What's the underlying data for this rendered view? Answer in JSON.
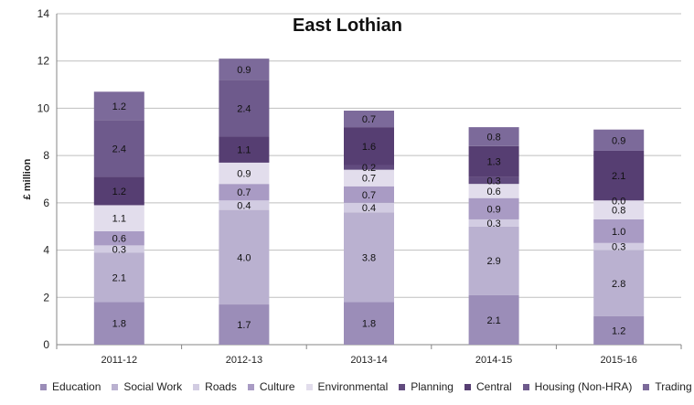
{
  "chart_data": {
    "type": "bar",
    "stacked": true,
    "title": "East Lothian",
    "xlabel": "",
    "ylabel": "£ million",
    "ylim": [
      0,
      14
    ],
    "yticks": [
      0,
      2,
      4,
      6,
      8,
      10,
      12,
      14
    ],
    "grid": true,
    "legend_position": "bottom",
    "categories": [
      "2011-12",
      "2012-13",
      "2013-14",
      "2014-15",
      "2015-16"
    ],
    "series": [
      {
        "name": "Education",
        "color": "#9B8DB8",
        "values": [
          1.8,
          1.7,
          1.8,
          2.1,
          1.2
        ]
      },
      {
        "name": "Social Work",
        "color": "#BAB1D0",
        "values": [
          2.1,
          4.0,
          3.8,
          2.9,
          2.8
        ]
      },
      {
        "name": "Roads",
        "color": "#D2CCE2",
        "values": [
          0.3,
          0.4,
          0.4,
          0.3,
          0.3
        ]
      },
      {
        "name": "Culture",
        "color": "#A99BC4",
        "values": [
          0.6,
          0.7,
          0.7,
          0.9,
          1.0
        ]
      },
      {
        "name": "Environmental",
        "color": "#E2DDEC",
        "values": [
          1.1,
          0.9,
          0.7,
          0.6,
          0.8
        ]
      },
      {
        "name": "Planning",
        "color": "#614B7E",
        "values": [
          0.0,
          0.0,
          0.2,
          0.3,
          0.0
        ]
      },
      {
        "name": "Central",
        "color": "#563E72",
        "values": [
          1.2,
          1.1,
          1.6,
          1.3,
          2.1
        ]
      },
      {
        "name": "Housing (Non-HRA)",
        "color": "#6E5A8C",
        "values": [
          2.4,
          2.4,
          0.0,
          0.0,
          0.0
        ]
      },
      {
        "name": "Trading",
        "color": "#7C6A9A",
        "values": [
          1.2,
          0.9,
          0.7,
          0.8,
          0.9
        ]
      }
    ],
    "data_labels": [
      [
        {
          "series": 0,
          "text": "1.8"
        },
        {
          "series": 1,
          "text": "2.1"
        },
        {
          "series": 2,
          "text": "0.3"
        },
        {
          "series": 3,
          "text": "0.6"
        },
        {
          "series": 4,
          "text": "1.1"
        },
        {
          "series": 6,
          "text": "1.2"
        },
        {
          "series": 7,
          "text": "2.4"
        },
        {
          "series": 8,
          "text": "1.2"
        }
      ],
      [
        {
          "series": 0,
          "text": "1.7"
        },
        {
          "series": 1,
          "text": "4.0"
        },
        {
          "series": 2,
          "text": "0.4"
        },
        {
          "series": 3,
          "text": "0.7"
        },
        {
          "series": 4,
          "text": "0.9"
        },
        {
          "series": 6,
          "text": "1.1"
        },
        {
          "series": 7,
          "text": "2.4"
        },
        {
          "series": 8,
          "text": "0.9"
        }
      ],
      [
        {
          "series": 0,
          "text": "1.8"
        },
        {
          "series": 1,
          "text": "3.8"
        },
        {
          "series": 2,
          "text": "0.4"
        },
        {
          "series": 3,
          "text": "0.7"
        },
        {
          "series": 4,
          "text": "0.7"
        },
        {
          "series": 5,
          "text": "0.2"
        },
        {
          "series": 6,
          "text": "1.6"
        },
        {
          "series": 8,
          "text": "0.7"
        }
      ],
      [
        {
          "series": 0,
          "text": "2.1"
        },
        {
          "series": 1,
          "text": "2.9"
        },
        {
          "series": 2,
          "text": "0.3"
        },
        {
          "series": 3,
          "text": "0.9"
        },
        {
          "series": 4,
          "text": "0.6"
        },
        {
          "series": 5,
          "text": "0.3"
        },
        {
          "series": 6,
          "text": "1.3"
        },
        {
          "series": 8,
          "text": "0.8"
        }
      ],
      [
        {
          "series": 0,
          "text": "1.2"
        },
        {
          "series": 1,
          "text": "2.8"
        },
        {
          "series": 2,
          "text": "0.3"
        },
        {
          "series": 3,
          "text": "1.0"
        },
        {
          "series": 4,
          "text": "0.8"
        },
        {
          "series": 5,
          "text": "0.0"
        },
        {
          "series": 6,
          "text": "2.1"
        },
        {
          "series": 8,
          "text": "0.9"
        }
      ]
    ]
  }
}
